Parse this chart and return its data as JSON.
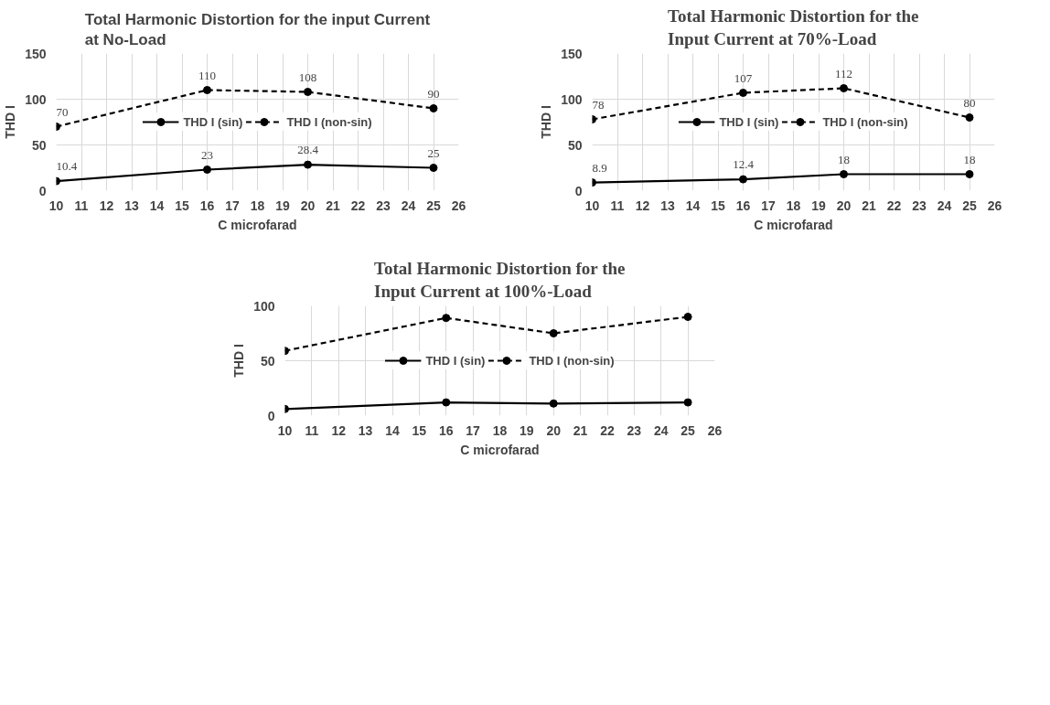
{
  "chart_data": [
    {
      "type": "line",
      "title": "Total Harmonic Distortion for the input Current\nat No-Load",
      "xlabel": "C microfarad",
      "ylabel": "THD I",
      "x": [
        10,
        16,
        20,
        25
      ],
      "xlim": [
        10,
        26
      ],
      "xticks": [
        10,
        11,
        12,
        13,
        14,
        15,
        16,
        17,
        18,
        19,
        20,
        21,
        22,
        23,
        24,
        25,
        26
      ],
      "ylim": [
        0,
        150
      ],
      "yticks": [
        0,
        50,
        100,
        150
      ],
      "grid": true,
      "legend": "center",
      "marker": "circle",
      "data_labels": true,
      "series": [
        {
          "name": "THD I (sin)",
          "color": "#000000",
          "line_style": "solid",
          "values": [
            10.4,
            23,
            28.4,
            25
          ]
        },
        {
          "name": "THD I (non-sin)",
          "color": "#000000",
          "line_style": "dashed",
          "values": [
            70,
            110,
            108,
            90
          ]
        }
      ]
    },
    {
      "type": "line",
      "title": "Total Harmonic Distortion for the\nInput Current at 70%-Load",
      "xlabel": "C microfarad",
      "ylabel": "THD I",
      "x": [
        10,
        16,
        20,
        25
      ],
      "xlim": [
        10,
        26
      ],
      "xticks": [
        10,
        11,
        12,
        13,
        14,
        15,
        16,
        17,
        18,
        19,
        20,
        21,
        22,
        23,
        24,
        25,
        26
      ],
      "ylim": [
        0,
        150
      ],
      "yticks": [
        0,
        50,
        100,
        150
      ],
      "grid": true,
      "legend": "center",
      "marker": "circle",
      "data_labels": true,
      "series": [
        {
          "name": "THD I (sin)",
          "color": "#000000",
          "line_style": "solid",
          "values": [
            8.9,
            12.4,
            18,
            18
          ]
        },
        {
          "name": "THD I (non-sin)",
          "color": "#000000",
          "line_style": "dashed",
          "values": [
            78,
            107,
            112,
            80
          ]
        }
      ]
    },
    {
      "type": "line",
      "title": "Total Harmonic Distortion for the\nInput Current at 100%-Load",
      "xlabel": "C microfarad",
      "ylabel": "THD I",
      "x": [
        10,
        16,
        20,
        25
      ],
      "xlim": [
        10,
        26
      ],
      "xticks": [
        10,
        11,
        12,
        13,
        14,
        15,
        16,
        17,
        18,
        19,
        20,
        21,
        22,
        23,
        24,
        25,
        26
      ],
      "ylim": [
        0,
        100
      ],
      "yticks": [
        0,
        50,
        100
      ],
      "grid": true,
      "legend": "center",
      "marker": "circle",
      "series": [
        {
          "name": "THD I (sin)",
          "color": "#000000",
          "line_style": "solid",
          "values": [
            6,
            12,
            11,
            12
          ]
        },
        {
          "name": "THD I (non-sin)",
          "color": "#000000",
          "line_style": "dashed",
          "values": [
            59,
            89,
            75,
            90
          ]
        }
      ]
    }
  ]
}
